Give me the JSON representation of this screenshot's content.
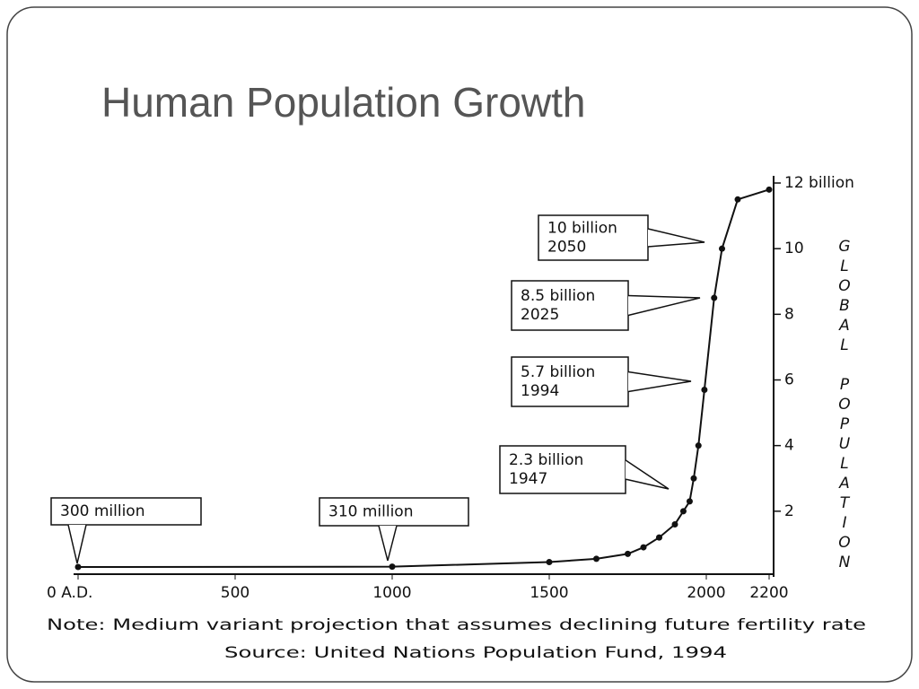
{
  "chart_data": {
    "type": "line",
    "title": "Human Population Growth",
    "y_label": "GLOBAL POPULATION",
    "x": [
      0,
      1000,
      1500,
      1650,
      1750,
      1800,
      1850,
      1900,
      1927,
      1947,
      1960,
      1975,
      1994,
      2025,
      2050,
      2100,
      2200
    ],
    "series": [
      {
        "name": "Global population",
        "color": "#111111",
        "values": [
          0.3,
          0.31,
          0.45,
          0.55,
          0.7,
          0.9,
          1.2,
          1.6,
          2.0,
          2.3,
          3.0,
          4.0,
          5.7,
          8.5,
          10,
          11.5,
          11.8
        ]
      }
    ],
    "xlim": [
      0,
      2200
    ],
    "xticks": [
      {
        "value": 0,
        "label": "0 A.D."
      },
      500,
      1000,
      1500,
      2000,
      2200
    ],
    "ylim": [
      0,
      12
    ],
    "yticks": [
      2,
      4,
      6,
      8,
      10,
      {
        "value": 12,
        "label": "12 billion"
      }
    ],
    "annotations": [
      {
        "lines": [
          "300 million"
        ]
      },
      {
        "lines": [
          "310 million"
        ]
      },
      {
        "lines": [
          "2.3 billion",
          "1947"
        ]
      },
      {
        "lines": [
          "5.7 billion",
          "1994"
        ]
      },
      {
        "lines": [
          "8.5 billion",
          "2025"
        ]
      },
      {
        "lines": [
          "10 billion",
          "2050"
        ]
      }
    ],
    "note": "Note: Medium variant projection that assumes declining future fertility rate",
    "source": "Source: United Nations Population Fund, 1994"
  }
}
